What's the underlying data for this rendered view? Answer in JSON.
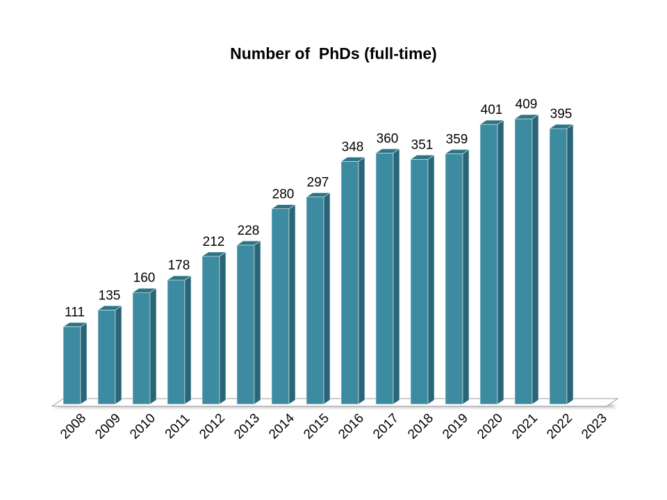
{
  "chart_data": {
    "type": "bar",
    "title": "Number of  PhDs (full-time)",
    "categories": [
      "2008",
      "2009",
      "2010",
      "2011",
      "2012",
      "2013",
      "2014",
      "2015",
      "2016",
      "2017",
      "2018",
      "2019",
      "2020",
      "2021",
      "2022",
      "2023"
    ],
    "values": [
      111,
      135,
      160,
      178,
      212,
      228,
      280,
      297,
      348,
      360,
      351,
      359,
      401,
      409,
      395,
      null
    ],
    "data_labels": [
      "111",
      "135",
      "160",
      "178",
      "212",
      "228",
      "280",
      "297",
      "348",
      "360",
      "351",
      "359",
      "401",
      "409",
      "395",
      ""
    ],
    "xlabel": "",
    "ylabel": "",
    "ylim": [
      0,
      420
    ],
    "grid": false,
    "legend": "none",
    "style": "3d-column"
  },
  "colors": {
    "bar_front": "#3d8ba1",
    "bar_side": "#2a6577",
    "bar_top": "#2f7486",
    "floor": "#ffffff",
    "floor_edge": "#9a9a9a"
  }
}
